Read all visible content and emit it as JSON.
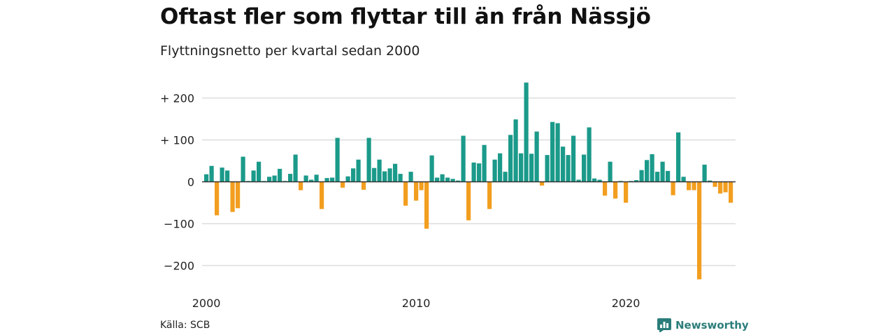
{
  "header": {
    "title": "Oftast fler som flyttar till än från Nässjö",
    "subtitle": "Flyttningsnetto per kvartal sedan 2000"
  },
  "footer": {
    "source": "Källa: SCB",
    "brand": "Newsworthy",
    "brand_icon": "newsworthy-logo-icon"
  },
  "colors": {
    "positive": "#1b9a8a",
    "negative": "#f29e1f",
    "grid": "#dddddd",
    "zero": "#333333",
    "brand": "#2b7d7a"
  },
  "chart_data": {
    "type": "bar",
    "title": "Oftast fler som flyttar till än från Nässjö",
    "subtitle": "Flyttningsnetto per kvartal sedan 2000",
    "xlabel": "",
    "ylabel": "",
    "x_start": "2000 Q1",
    "frequency": "quarterly",
    "x_ticks": [
      "2000",
      "2010",
      "2020"
    ],
    "y_ticks": [
      {
        "value": 200,
        "label": "+ 200"
      },
      {
        "value": 100,
        "label": "+ 100"
      },
      {
        "value": 0,
        "label": "0"
      },
      {
        "value": -100,
        "label": "−100"
      },
      {
        "value": -200,
        "label": "−200"
      }
    ],
    "ylim": [
      -240,
      240
    ],
    "grid": true,
    "values": [
      18,
      38,
      -80,
      34,
      27,
      -72,
      -63,
      60,
      2,
      27,
      48,
      2,
      12,
      15,
      31,
      2,
      19,
      65,
      -20,
      15,
      5,
      17,
      -65,
      9,
      10,
      105,
      -14,
      13,
      32,
      53,
      -19,
      105,
      33,
      53,
      25,
      32,
      43,
      19,
      -57,
      24,
      -45,
      -20,
      -112,
      63,
      10,
      18,
      10,
      7,
      3,
      110,
      -92,
      46,
      44,
      88,
      -65,
      53,
      68,
      24,
      112,
      149,
      68,
      237,
      67,
      120,
      -9,
      64,
      143,
      140,
      84,
      64,
      110,
      5,
      65,
      130,
      8,
      5,
      -33,
      48,
      -40,
      2,
      -50,
      2,
      4,
      28,
      52,
      66,
      24,
      48,
      26,
      -32,
      118,
      12,
      -20,
      -20,
      -233,
      41,
      3,
      -12,
      -28,
      -25,
      -50
    ]
  }
}
